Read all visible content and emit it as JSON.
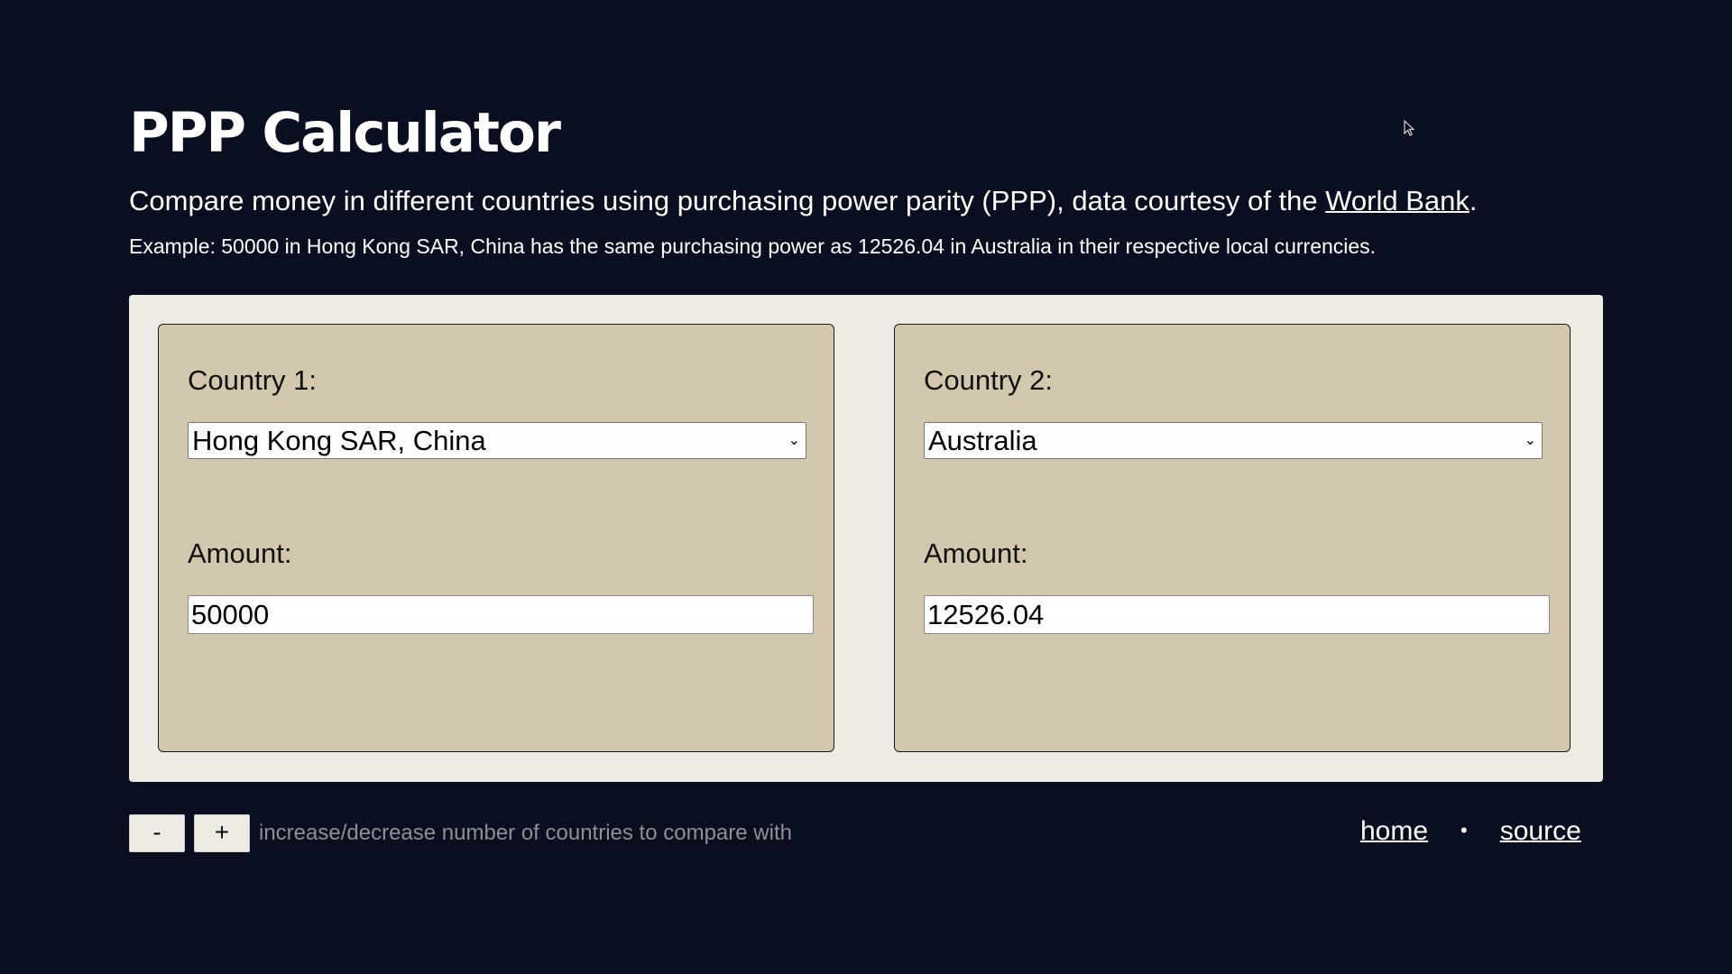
{
  "header": {
    "title": "PPP Calculator",
    "subtitle_prefix": "Compare money in different countries using purchasing power parity (PPP), data courtesy of the ",
    "subtitle_link": "World Bank",
    "subtitle_suffix": ".",
    "example": "Example: 50000 in Hong Kong SAR, China has the same purchasing power as 12526.04 in Australia in their respective local currencies."
  },
  "cards": [
    {
      "country_label": "Country 1:",
      "country_value": "Hong Kong SAR, China",
      "amount_label": "Amount:",
      "amount_value": "50000"
    },
    {
      "country_label": "Country 2:",
      "country_value": "Australia",
      "amount_label": "Amount:",
      "amount_value": "12526.04"
    }
  ],
  "controls": {
    "minus_label": "-",
    "plus_label": "+",
    "hint": "increase/decrease number of countries to compare with"
  },
  "footer": {
    "home_label": "home",
    "separator": "•",
    "source_label": "source"
  },
  "icons": {
    "dropdown": "chevron-down-icon",
    "cursor": "mouse-pointer-icon"
  },
  "colors": {
    "background": "#090e20",
    "panel": "#eeebe4",
    "card": "#d3c8ad",
    "hint_text": "#8f9094"
  }
}
